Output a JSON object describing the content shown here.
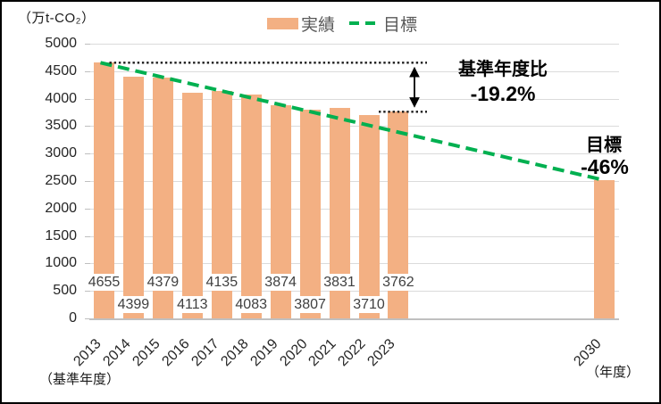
{
  "unit_label": "（万t-CO₂）",
  "legend": {
    "actual_label": "実績",
    "target_label": "目標"
  },
  "annotations": {
    "baseline_title": "基準年度比",
    "baseline_value": "-19.2%",
    "target_title": "目標",
    "target_value": "-46%"
  },
  "footnotes": {
    "base_year": "（基準年度）",
    "axis_unit": "（年度）"
  },
  "colors": {
    "bar": "#F3B083",
    "target_line": "#00B050",
    "gridline": "#DBDBDB",
    "axis_line": "#C0C0C0",
    "tick": "#BFBFBF",
    "tick_text": "#262626",
    "bar_label_text": "#404040",
    "legend_text": "#595959",
    "annotation_text": "#000000",
    "dotted_line": "#1a1a1a"
  },
  "chart_data": {
    "type": "bar",
    "title": "",
    "ylabel": "万t-CO₂",
    "xlabel": "年度",
    "categories": [
      "2013",
      "2014",
      "2015",
      "2016",
      "2017",
      "2018",
      "2019",
      "2020",
      "2021",
      "2022",
      "2023",
      "2030"
    ],
    "values": [
      4655,
      4399,
      4379,
      4113,
      4135,
      4083,
      3874,
      3807,
      3831,
      3710,
      3762,
      2514
    ],
    "bar_labels": [
      "4655",
      "4399",
      "4379",
      "4113",
      "4135",
      "4083",
      "3874",
      "3807",
      "3831",
      "3710",
      "3762",
      ""
    ],
    "slots": [
      0,
      1,
      2,
      3,
      4,
      5,
      6,
      7,
      8,
      9,
      10,
      17
    ],
    "total_slots": 18,
    "ylim": [
      0,
      5000
    ],
    "ytick_step": 500,
    "grid": true,
    "legend_position": "top",
    "series": [
      {
        "name": "実績",
        "type": "bar",
        "note": "actual emissions 2013-2023 plus 2030 target bar"
      },
      {
        "name": "目標",
        "type": "dashed-line",
        "from": {
          "category": "2013",
          "value": 4655
        },
        "to": {
          "category": "2030",
          "value": 2514
        }
      }
    ],
    "baseline_comparison": {
      "base_value": 4655,
      "latest_value": 3762,
      "change": "-19.2%"
    },
    "target_2030": {
      "value": 2514,
      "change": "-46%"
    }
  }
}
